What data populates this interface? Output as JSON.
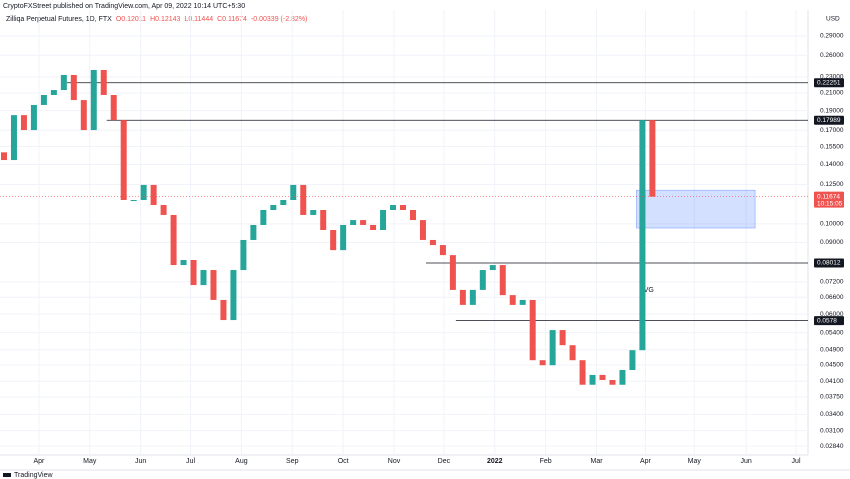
{
  "header": {
    "published": "CryptoFXStreet published on TradingView.com, Apr 09, 2022 10:14 UTC+5:30",
    "symbol": "Zilliqa Perpetual Futures, 1D, FTX",
    "ohlc": [
      "O0.12011",
      "H0.12143",
      "L0.11444",
      "C0.11674",
      "-0.00339 (-2.82%)"
    ]
  },
  "footer": {
    "brand": "TradingView"
  },
  "chart_data": {
    "type": "candlestick",
    "currency": "USD",
    "log_scale": true,
    "grid": true,
    "up_color": "#26a69a",
    "down_color": "#ef5350",
    "open": [
      0.15,
      0.1436,
      0.1852,
      0.1702,
      0.1962,
      0.2076,
      0.2135,
      0.2325,
      0.2017,
      0.1702,
      0.2392,
      0.2076,
      0.1801,
      0.1145,
      0.1145,
      0.1247,
      0.1113,
      0.1052,
      0.0792,
      0.0815,
      0.0707,
      0.077,
      0.065,
      0.058,
      0.077,
      0.0913,
      0.0994,
      0.1082,
      0.1113,
      0.1145,
      0.1247,
      0.1052,
      0.1082,
      0.0966,
      0.0862,
      0.0994,
      0.1022,
      0.0994,
      0.0966,
      0.1082,
      0.1113,
      0.1082,
      0.1022,
      0.0913,
      0.0887,
      0.0838,
      0.0688,
      0.0632,
      0.0688,
      0.077,
      0.0792,
      0.0668,
      0.0632,
      0.065,
      0.0462,
      0.0449,
      0.0548,
      0.0503,
      0.0462,
      0.0402,
      0.0425,
      0.0413,
      0.0402,
      0.0437,
      0.0489,
      0.1801
    ],
    "close": [
      0.1436,
      0.1852,
      0.1702,
      0.1962,
      0.2076,
      0.2135,
      0.2325,
      0.2017,
      0.1702,
      0.2392,
      0.2076,
      0.1801,
      0.1145,
      0.1145,
      0.1247,
      0.1113,
      0.1052,
      0.0792,
      0.0815,
      0.0707,
      0.077,
      0.065,
      0.058,
      0.077,
      0.0913,
      0.0994,
      0.1082,
      0.1113,
      0.1145,
      0.1247,
      0.1052,
      0.1082,
      0.0966,
      0.0862,
      0.0994,
      0.1022,
      0.0994,
      0.0966,
      0.1082,
      0.1113,
      0.1082,
      0.1022,
      0.0913,
      0.0887,
      0.0838,
      0.0688,
      0.0632,
      0.0688,
      0.077,
      0.0792,
      0.0668,
      0.0632,
      0.065,
      0.0462,
      0.0449,
      0.0548,
      0.0503,
      0.0462,
      0.0402,
      0.0425,
      0.0413,
      0.0402,
      0.0437,
      0.0489,
      0.1801,
      0.1167
    ],
    "xlim": [
      -0.2,
      80.6
    ],
    "xticks": [
      {
        "value": 3.5,
        "label": "Apr"
      },
      {
        "value": 8.6,
        "label": "May"
      },
      {
        "value": 13.7,
        "label": "Jun"
      },
      {
        "value": 18.7,
        "label": "Jul"
      },
      {
        "value": 23.8,
        "label": "Aug"
      },
      {
        "value": 28.9,
        "label": "Sep"
      },
      {
        "value": 34,
        "label": "Oct"
      },
      {
        "value": 39.1,
        "label": "Nov"
      },
      {
        "value": 44.1,
        "label": "Dec"
      },
      {
        "value": 49.2,
        "label": "2022"
      },
      {
        "value": 54.3,
        "label": "Feb"
      },
      {
        "value": 59.4,
        "label": "Mar"
      },
      {
        "value": 64.3,
        "label": "Apr"
      },
      {
        "value": 69.2,
        "label": "May"
      },
      {
        "value": 74.4,
        "label": "Jun"
      },
      {
        "value": 79.4,
        "label": "Jul"
      }
    ],
    "ylim": [
      0.027,
      0.336
    ],
    "yticks": [
      {
        "value": 0.29,
        "label": "0.29000"
      },
      {
        "value": 0.26,
        "label": "0.26000"
      },
      {
        "value": 0.23,
        "label": "0.23000"
      },
      {
        "value": 0.21,
        "label": "0.21000"
      },
      {
        "value": 0.19,
        "label": "0.19000"
      },
      {
        "value": 0.17,
        "label": "0.17000"
      },
      {
        "value": 0.155,
        "label": "0.15500"
      },
      {
        "value": 0.14,
        "label": "0.14000"
      },
      {
        "value": 0.125,
        "label": "0.12500"
      },
      {
        "value": 0.1,
        "label": "0.10000"
      },
      {
        "value": 0.09,
        "label": "0.09000"
      },
      {
        "value": 0.072,
        "label": "0.07200"
      },
      {
        "value": 0.066,
        "label": "0.06600"
      },
      {
        "value": 0.06,
        "label": "0.06000"
      },
      {
        "value": 0.054,
        "label": "0.05400"
      },
      {
        "value": 0.049,
        "label": "0.04900"
      },
      {
        "value": 0.045,
        "label": "0.04500"
      },
      {
        "value": 0.041,
        "label": "0.04100"
      },
      {
        "value": 0.0375,
        "label": "0.03750"
      },
      {
        "value": 0.034,
        "label": "0.03400"
      },
      {
        "value": 0.031,
        "label": "0.03100"
      },
      {
        "value": 0.0284,
        "label": "0.02840"
      }
    ],
    "levels": [
      {
        "value": 0.22251,
        "from": 6.3
      },
      {
        "value": 0.17989,
        "from": 10.3
      },
      {
        "value": 0.08012,
        "from": 42.3
      },
      {
        "value": 0.0578,
        "from": 45.3
      }
    ],
    "last_price": 0.11674,
    "countdown": "10:15:05",
    "zone": {
      "label": "FVG",
      "low": 0.0977,
      "high": 0.121,
      "from": 63.4,
      "to": 75.3
    }
  }
}
